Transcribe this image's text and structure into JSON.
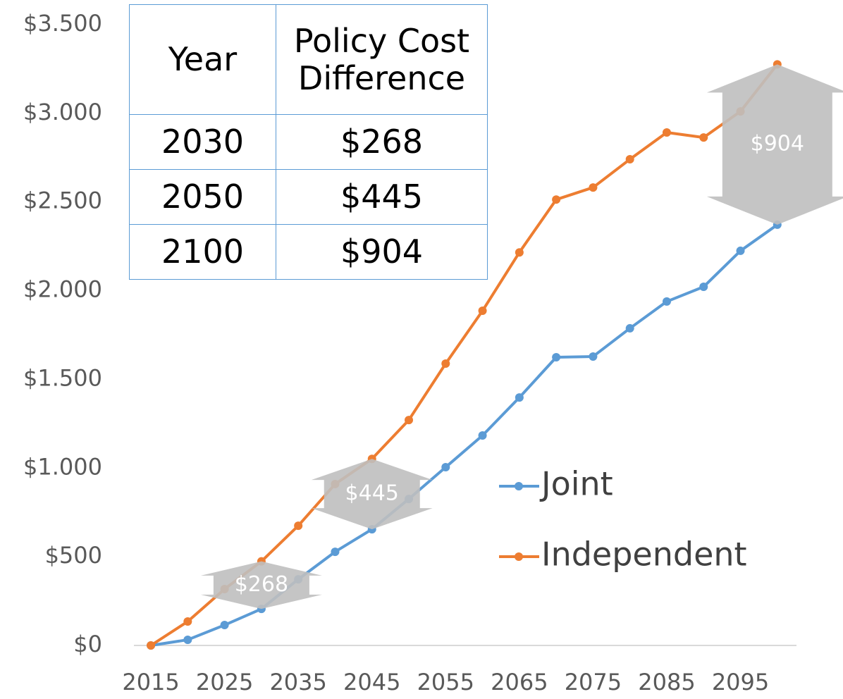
{
  "chart_data": {
    "type": "line",
    "x": [
      2015,
      2020,
      2025,
      2030,
      2035,
      2040,
      2045,
      2050,
      2055,
      2060,
      2065,
      2070,
      2075,
      2080,
      2085,
      2090,
      2095,
      2100
    ],
    "series": [
      {
        "name": "Joint",
        "color": "#5b9bd5",
        "values": [
          0,
          32,
          115,
          206,
          373,
          528,
          655,
          826,
          1005,
          1184,
          1398,
          1625,
          1629,
          1788,
          1939,
          2022,
          2225,
          2372
        ]
      },
      {
        "name": "Independent",
        "color": "#ed7d31",
        "values": [
          0,
          135,
          318,
          474,
          675,
          910,
          1052,
          1271,
          1589,
          1887,
          2216,
          2514,
          2582,
          2741,
          2892,
          2864,
          3011,
          3276
        ]
      }
    ],
    "xlim": [
      2012.7,
      2102.6
    ],
    "xticks": [
      2015,
      2025,
      2035,
      2045,
      2055,
      2065,
      2075,
      2085,
      2095
    ],
    "ylim": [
      0,
      3500
    ],
    "yticks": [
      {
        "value": 0,
        "label": "$0"
      },
      {
        "value": 500,
        "label": "$500"
      },
      {
        "value": 1000,
        "label": "$1.000"
      },
      {
        "value": 1500,
        "label": "$1.500"
      },
      {
        "value": 2000,
        "label": "$2.000"
      },
      {
        "value": 2500,
        "label": "$2.500"
      },
      {
        "value": 3000,
        "label": "$3.000"
      },
      {
        "value": 3500,
        "label": "$3.500"
      }
    ],
    "grid": false,
    "legend": "right",
    "annotations": [
      {
        "label": "$268",
        "x": 2030
      },
      {
        "label": "$445",
        "x": 2045
      },
      {
        "label": "$904",
        "x": 2100
      }
    ],
    "annotation_color": "#bfbfbf",
    "table": {
      "header": [
        "Year",
        "Policy Cost Difference"
      ],
      "rows": [
        [
          "2030",
          "$268"
        ],
        [
          "2050",
          "$445"
        ],
        [
          "2100",
          "$904"
        ]
      ]
    }
  }
}
